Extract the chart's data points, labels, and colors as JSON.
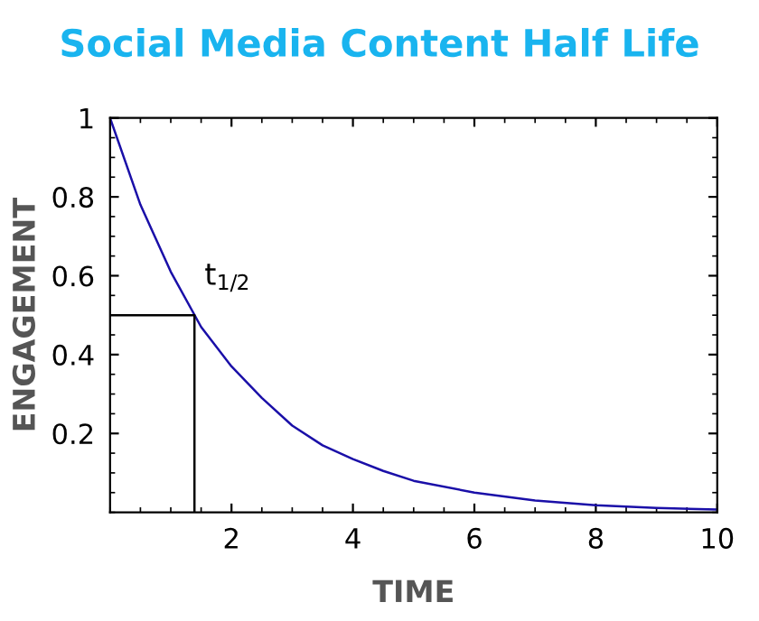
{
  "chart_data": {
    "type": "line",
    "title": "Social Media Content Half Life",
    "xlabel": "TIME",
    "ylabel": "ENGAGEMENT",
    "series": [
      {
        "color": "#1a0fa8",
        "x": [
          0,
          0.5,
          1,
          1.5,
          2,
          2.5,
          3,
          3.5,
          4,
          4.5,
          5,
          6,
          7,
          8,
          9,
          10
        ],
        "values": [
          1,
          0.78,
          0.61,
          0.47,
          0.37,
          0.29,
          0.22,
          0.17,
          0.135,
          0.105,
          0.08,
          0.05,
          0.03,
          0.018,
          0.011,
          0.007
        ]
      },
      {
        "color": "#000000",
        "x": [
          0,
          1.39,
          1.39
        ],
        "values": [
          0.5,
          0.5,
          0
        ]
      }
    ],
    "annotations": [
      {
        "text": "t$_{1/2}$",
        "x": 1.39,
        "y": 0.5
      }
    ],
    "xlim": [
      0,
      10
    ],
    "ylim": [
      0,
      1
    ],
    "xticks": [
      2,
      4,
      6,
      8,
      10
    ],
    "yticks": [
      0.2,
      0.4,
      0.6,
      0.8,
      1
    ],
    "grid": false,
    "legend": false,
    "marker": "none",
    "line_style": "solid"
  }
}
